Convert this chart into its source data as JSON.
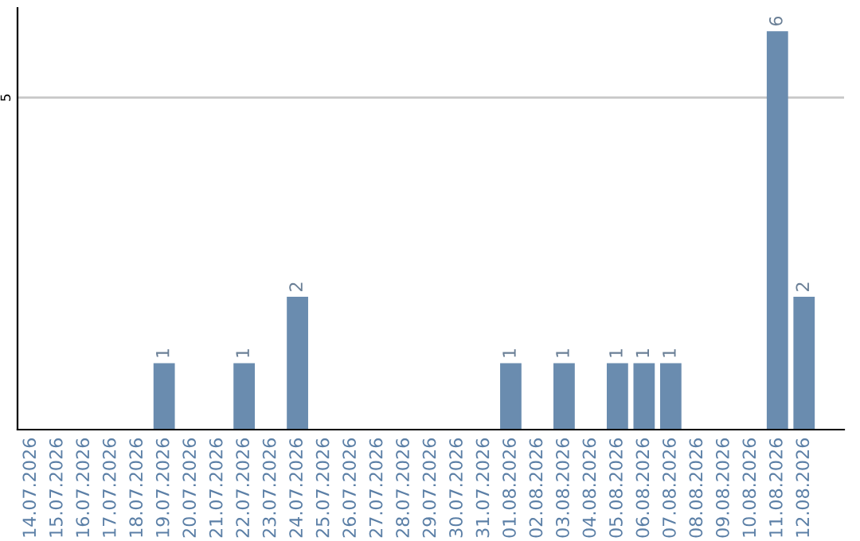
{
  "chart_data": {
    "type": "bar",
    "categories": [
      "14.07.2026",
      "15.07.2026",
      "16.07.2026",
      "17.07.2026",
      "18.07.2026",
      "19.07.2026",
      "20.07.2026",
      "21.07.2026",
      "22.07.2026",
      "23.07.2026",
      "24.07.2026",
      "25.07.2026",
      "26.07.2026",
      "27.07.2026",
      "28.07.2026",
      "29.07.2026",
      "30.07.2026",
      "31.07.2026",
      "01.08.2026",
      "02.08.2026",
      "03.08.2026",
      "04.08.2026",
      "05.08.2026",
      "06.08.2026",
      "07.08.2026",
      "08.08.2026",
      "09.08.2026",
      "10.08.2026",
      "11.08.2026",
      "12.08.2026"
    ],
    "values": [
      0,
      0,
      0,
      0,
      0,
      1,
      0,
      0,
      1,
      0,
      2,
      0,
      0,
      0,
      0,
      0,
      0,
      0,
      1,
      0,
      1,
      0,
      1,
      1,
      1,
      0,
      0,
      0,
      6,
      2
    ],
    "value_labels": [
      null,
      null,
      null,
      null,
      null,
      "1",
      null,
      null,
      "1",
      null,
      "2",
      null,
      null,
      null,
      null,
      null,
      null,
      null,
      "1",
      null,
      "1",
      null,
      "1",
      "1",
      "1",
      null,
      null,
      null,
      "6",
      "2"
    ],
    "color": "#6a8caf",
    "ylim": [
      0,
      6.35
    ],
    "yticks": [
      5
    ],
    "grid": "y"
  }
}
